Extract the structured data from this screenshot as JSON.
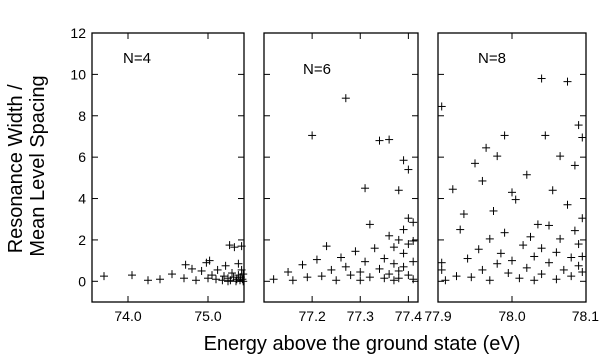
{
  "figure": {
    "ylabel_line1": "Resonance Width /",
    "ylabel_line2": "Mean Level Spacing",
    "xlabel": "Energy above the ground state (eV)"
  },
  "chart_data": [
    {
      "type": "scatter",
      "panel_label": "N=4",
      "xlim": [
        73.55,
        75.45
      ],
      "ylim": [
        -1,
        12
      ],
      "xticks": [
        74.0,
        75.0
      ],
      "xtick_labels": [
        "74.0",
        "75.0"
      ],
      "yticks": [
        0,
        2,
        4,
        6,
        8,
        10,
        12
      ],
      "ytick_labels": [
        "0",
        "2",
        "4",
        "6",
        "8",
        "10",
        "12"
      ],
      "grid": false,
      "points": [
        [
          73.7,
          0.25
        ],
        [
          74.05,
          0.3
        ],
        [
          74.25,
          0.05
        ],
        [
          74.4,
          0.1
        ],
        [
          74.55,
          0.35
        ],
        [
          74.7,
          0.15
        ],
        [
          74.72,
          0.8
        ],
        [
          74.8,
          0.6
        ],
        [
          74.85,
          0.05
        ],
        [
          74.92,
          0.5
        ],
        [
          74.98,
          0.9
        ],
        [
          75.0,
          0.15
        ],
        [
          75.02,
          1.0
        ],
        [
          75.05,
          0.3
        ],
        [
          75.1,
          0.1
        ],
        [
          75.12,
          0.55
        ],
        [
          75.18,
          0.05
        ],
        [
          75.2,
          0.25
        ],
        [
          75.22,
          0.75
        ],
        [
          75.25,
          0.0
        ],
        [
          75.25,
          0.15
        ],
        [
          75.27,
          1.75
        ],
        [
          75.28,
          0.05
        ],
        [
          75.3,
          0.4
        ],
        [
          75.32,
          0.2
        ],
        [
          75.33,
          1.65
        ],
        [
          75.35,
          0.0
        ],
        [
          75.36,
          0.1
        ],
        [
          75.38,
          0.3
        ],
        [
          75.38,
          0.85
        ],
        [
          75.4,
          0.05
        ],
        [
          75.41,
          0.2
        ],
        [
          75.42,
          0.55
        ],
        [
          75.42,
          1.7
        ],
        [
          75.43,
          0.1
        ],
        [
          75.44,
          0.0
        ],
        [
          75.44,
          0.35
        ]
      ]
    },
    {
      "type": "scatter",
      "panel_label": "N=6",
      "xlim": [
        77.1,
        77.42
      ],
      "ylim": [
        -1,
        12
      ],
      "xticks": [
        77.2,
        77.3,
        77.4
      ],
      "xtick_labels": [
        "77.2",
        "77.3",
        "77.4"
      ],
      "yticks": [
        0,
        2,
        4,
        6,
        8,
        10,
        12
      ],
      "ytick_labels": [],
      "grid": false,
      "points": [
        [
          77.12,
          0.1
        ],
        [
          77.15,
          0.45
        ],
        [
          77.16,
          0.05
        ],
        [
          77.18,
          0.8
        ],
        [
          77.19,
          0.2
        ],
        [
          77.2,
          7.05
        ],
        [
          77.21,
          1.05
        ],
        [
          77.22,
          0.25
        ],
        [
          77.23,
          1.7
        ],
        [
          77.24,
          0.55
        ],
        [
          77.25,
          0.05
        ],
        [
          77.26,
          1.15
        ],
        [
          77.27,
          0.7
        ],
        [
          77.27,
          8.85
        ],
        [
          77.28,
          0.3
        ],
        [
          77.29,
          1.45
        ],
        [
          77.3,
          0.45
        ],
        [
          77.3,
          0.05
        ],
        [
          77.31,
          4.5
        ],
        [
          77.31,
          0.95
        ],
        [
          77.32,
          2.75
        ],
        [
          77.32,
          0.2
        ],
        [
          77.33,
          1.6
        ],
        [
          77.34,
          6.8
        ],
        [
          77.34,
          0.6
        ],
        [
          77.35,
          0.15
        ],
        [
          77.35,
          1.1
        ],
        [
          77.36,
          6.85
        ],
        [
          77.36,
          2.2
        ],
        [
          77.36,
          0.35
        ],
        [
          77.37,
          1.65
        ],
        [
          77.37,
          0.85
        ],
        [
          77.37,
          0.05
        ],
        [
          77.38,
          4.4
        ],
        [
          77.38,
          2.0
        ],
        [
          77.38,
          0.5
        ],
        [
          77.38,
          0.15
        ],
        [
          77.39,
          5.85
        ],
        [
          77.39,
          1.35
        ],
        [
          77.39,
          0.7
        ],
        [
          77.39,
          2.5
        ],
        [
          77.4,
          5.4
        ],
        [
          77.4,
          3.05
        ],
        [
          77.4,
          1.8
        ],
        [
          77.4,
          0.3
        ],
        [
          77.41,
          2.85
        ],
        [
          77.41,
          0.95
        ],
        [
          77.41,
          0.1
        ],
        [
          77.41,
          1.95
        ]
      ]
    },
    {
      "type": "scatter",
      "panel_label": "N=8",
      "xlim": [
        77.9,
        78.1
      ],
      "ylim": [
        -1,
        12
      ],
      "xticks": [
        77.9,
        78.0,
        78.1
      ],
      "xtick_labels": [
        "77.9",
        "78.0",
        "78.1"
      ],
      "yticks": [
        0,
        2,
        4,
        6,
        8,
        10,
        12
      ],
      "ytick_labels": [],
      "grid": false,
      "points": [
        [
          77.905,
          8.45
        ],
        [
          77.905,
          0.9
        ],
        [
          77.905,
          0.55
        ],
        [
          77.91,
          0.05
        ],
        [
          77.92,
          4.45
        ],
        [
          77.925,
          0.25
        ],
        [
          77.93,
          2.5
        ],
        [
          77.935,
          3.25
        ],
        [
          77.94,
          1.1
        ],
        [
          77.945,
          0.2
        ],
        [
          77.95,
          5.7
        ],
        [
          77.955,
          1.55
        ],
        [
          77.96,
          4.85
        ],
        [
          77.96,
          0.55
        ],
        [
          77.965,
          6.45
        ],
        [
          77.97,
          2.05
        ],
        [
          77.97,
          0.05
        ],
        [
          77.975,
          3.4
        ],
        [
          77.98,
          6.05
        ],
        [
          77.98,
          0.85
        ],
        [
          77.985,
          1.35
        ],
        [
          77.99,
          7.05
        ],
        [
          77.99,
          2.35
        ],
        [
          77.995,
          0.4
        ],
        [
          78.0,
          4.3
        ],
        [
          78.0,
          1.0
        ],
        [
          78.005,
          3.95
        ],
        [
          78.01,
          0.15
        ],
        [
          78.015,
          1.75
        ],
        [
          78.02,
          5.15
        ],
        [
          78.02,
          0.65
        ],
        [
          78.025,
          2.15
        ],
        [
          78.03,
          1.2
        ],
        [
          78.03,
          0.05
        ],
        [
          78.035,
          2.75
        ],
        [
          78.04,
          9.8
        ],
        [
          78.04,
          1.6
        ],
        [
          78.04,
          0.35
        ],
        [
          78.045,
          7.05
        ],
        [
          78.05,
          2.7
        ],
        [
          78.05,
          0.9
        ],
        [
          78.055,
          4.4
        ],
        [
          78.06,
          1.4
        ],
        [
          78.06,
          0.1
        ],
        [
          78.065,
          6.05
        ],
        [
          78.065,
          2.05
        ],
        [
          78.07,
          0.55
        ],
        [
          78.075,
          9.65
        ],
        [
          78.075,
          3.7
        ],
        [
          78.08,
          1.15
        ],
        [
          78.08,
          0.25
        ],
        [
          78.085,
          2.45
        ],
        [
          78.085,
          5.6
        ],
        [
          78.09,
          7.55
        ],
        [
          78.09,
          0.75
        ],
        [
          78.09,
          1.8
        ],
        [
          78.095,
          6.95
        ],
        [
          78.095,
          3.05
        ],
        [
          78.095,
          0.45
        ],
        [
          78.095,
          1.2
        ]
      ]
    }
  ]
}
